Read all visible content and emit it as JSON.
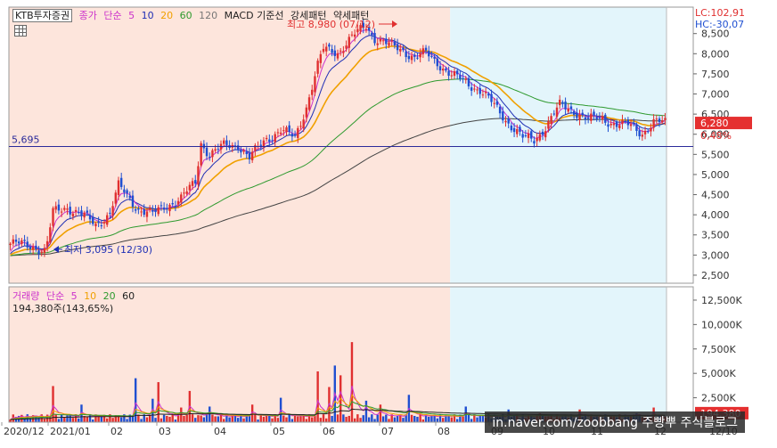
{
  "legend": {
    "stock_name": "KTB투자증권",
    "price_type": "종가",
    "ma_type": "단순",
    "ma_periods": [
      "5",
      "10",
      "20",
      "60",
      "120"
    ],
    "macd": "MACD 기준선",
    "strong": "강세패턴",
    "weak": "약세패턴"
  },
  "volume_legend": {
    "label": "거래량",
    "ma_type": "단순",
    "ma_periods": [
      "5",
      "10",
      "20",
      "60"
    ],
    "current": "194,380주(143,65%)"
  },
  "indicators": {
    "lc": "LC:102,91",
    "hc": "HC:-30,07"
  },
  "annotations": {
    "high": "최고 8,980 (07/12)",
    "low": "최저 3,095 (12/30)",
    "hline_value": "5,695",
    "current_price": "6,280",
    "current_change": "0,48%",
    "current_volume": "194,380"
  },
  "watermark": "in.naver.com/zoobbang 주빵뿌 주식블로그",
  "colors": {
    "bg_left": "#fde5dc",
    "bg_right": "#e3f5fb",
    "up": "#e03030",
    "down": "#1f4fd1",
    "ma5": "#cc33cc",
    "ma10": "#1f2fb5",
    "ma20": "#f0a000",
    "ma60": "#2e9a2e",
    "ma120": "#444444",
    "hline": "#2b2b9a"
  },
  "chart_data": {
    "type": "candlestick",
    "price_axis": [
      "8,500",
      "8,000",
      "7,500",
      "7,000",
      "6,500",
      "6,000",
      "5,500",
      "5,000",
      "4,500",
      "4,000",
      "3,500",
      "3,000",
      "2,500"
    ],
    "price_range": [
      2300,
      8980
    ],
    "volume_axis": [
      "12,500K",
      "10,000K",
      "7,500K",
      "5,000K",
      "2,500K"
    ],
    "volume_range": [
      0,
      13500000
    ],
    "date_labels": [
      "2020/12",
      "2021/01",
      "02",
      "03",
      "04",
      "05",
      "06",
      "07",
      "08",
      "09",
      "10",
      "11",
      "12",
      "12/10"
    ],
    "close_anchors": [
      [
        0,
        3280
      ],
      [
        8,
        3230
      ],
      [
        12,
        3100
      ],
      [
        13,
        3300
      ],
      [
        15,
        4050
      ],
      [
        20,
        4200
      ],
      [
        25,
        4000
      ],
      [
        30,
        3750
      ],
      [
        35,
        4050
      ],
      [
        38,
        4700
      ],
      [
        40,
        4550
      ],
      [
        45,
        4150
      ],
      [
        50,
        4000
      ],
      [
        55,
        4250
      ],
      [
        60,
        4400
      ],
      [
        65,
        4800
      ],
      [
        67,
        5800
      ],
      [
        70,
        5500
      ],
      [
        75,
        5700
      ],
      [
        80,
        5750
      ],
      [
        84,
        5400
      ],
      [
        90,
        5900
      ],
      [
        95,
        6100
      ],
      [
        100,
        5900
      ],
      [
        104,
        6700
      ],
      [
        108,
        7700
      ],
      [
        110,
        8100
      ],
      [
        115,
        8050
      ],
      [
        120,
        8400
      ],
      [
        125,
        8700
      ],
      [
        128,
        8400
      ],
      [
        133,
        8200
      ],
      [
        138,
        8100
      ],
      [
        142,
        7900
      ],
      [
        146,
        8000
      ],
      [
        150,
        7800
      ],
      [
        155,
        7450
      ],
      [
        160,
        7300
      ],
      [
        165,
        7100
      ],
      [
        170,
        6700
      ],
      [
        175,
        6300
      ],
      [
        180,
        5900
      ],
      [
        184,
        5850
      ],
      [
        188,
        6200
      ],
      [
        193,
        6700
      ],
      [
        198,
        6600
      ],
      [
        203,
        6350
      ],
      [
        208,
        6400
      ],
      [
        213,
        6250
      ],
      [
        218,
        6200
      ],
      [
        222,
        6050
      ],
      [
        226,
        6280
      ],
      [
        230,
        6280
      ]
    ],
    "ma_alpha": {
      "ma5": 0.35,
      "ma10": 0.18,
      "ma20": 0.09,
      "ma60": 0.028,
      "ma120": 0.013
    },
    "highlight_start_index": 155,
    "volume_profile": {
      "base": 450000,
      "spikes": [
        [
          15,
          3700000
        ],
        [
          25,
          1800000
        ],
        [
          44,
          4500000
        ],
        [
          50,
          2400000
        ],
        [
          52,
          4100000
        ],
        [
          60,
          1500000
        ],
        [
          63,
          3200000
        ],
        [
          70,
          1600000
        ],
        [
          85,
          1800000
        ],
        [
          95,
          2500000
        ],
        [
          108,
          5200000
        ],
        [
          112,
          3600000
        ],
        [
          114,
          5800000
        ],
        [
          116,
          4800000
        ],
        [
          120,
          8200000
        ],
        [
          125,
          2200000
        ],
        [
          130,
          1800000
        ],
        [
          140,
          2800000
        ],
        [
          160,
          1600000
        ],
        [
          175,
          1300000
        ],
        [
          186,
          900000
        ],
        [
          200,
          1300000
        ],
        [
          220,
          900000
        ],
        [
          226,
          1500000
        ]
      ]
    },
    "n_bars": 231
  }
}
